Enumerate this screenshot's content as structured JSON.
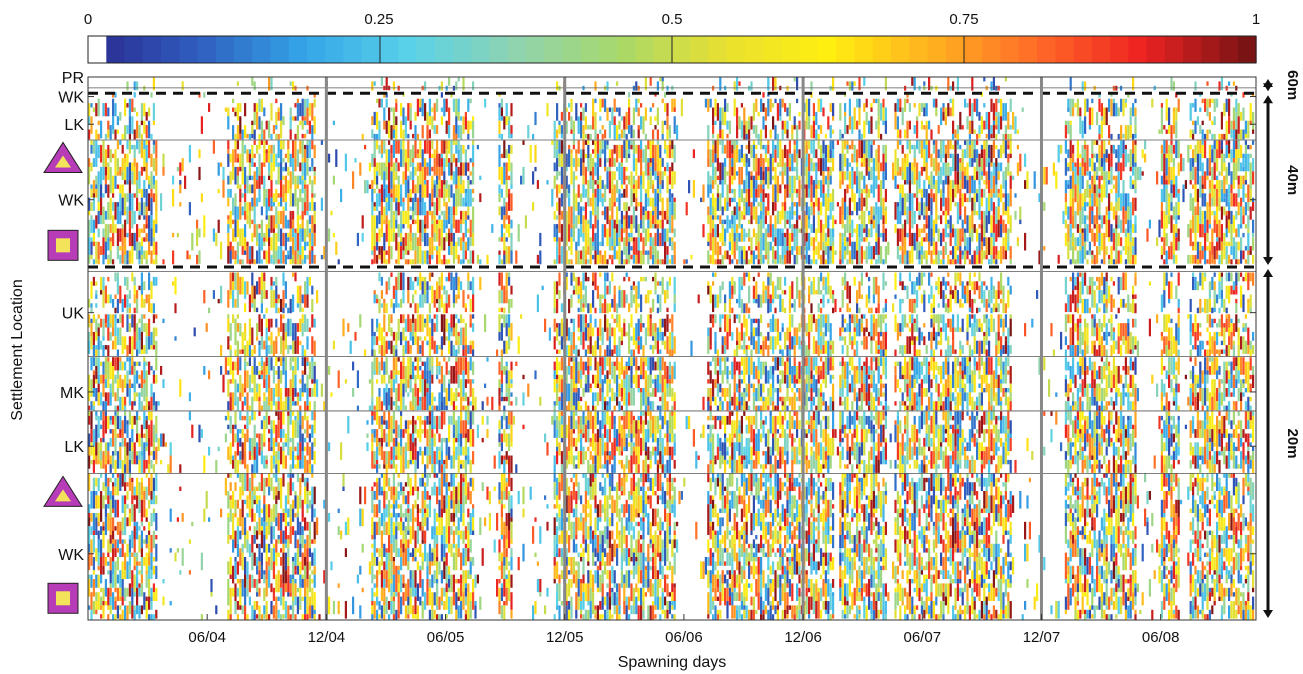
{
  "chart_data": {
    "type": "heatmap",
    "xlabel": "Spawning days",
    "ylabel": "Settlement Location",
    "colorbar": {
      "range": [
        0,
        1
      ],
      "ticks": [
        "0",
        "0.25",
        "0.5",
        "0.75",
        "1"
      ],
      "colormap": [
        "#2b2c92",
        "#3060c0",
        "#34a6e8",
        "#5ad2e8",
        "#8fd3b0",
        "#a8d86a",
        "#e8e030",
        "#ffef10",
        "#ffb020",
        "#ff6a28",
        "#ee2222",
        "#7a1414"
      ]
    },
    "x_tick_labels": [
      "06/04",
      "12/04",
      "06/05",
      "12/05",
      "06/06",
      "12/06",
      "06/07",
      "12/07",
      "06/08"
    ],
    "x_ticks": [
      0.5,
      1.0,
      1.5,
      2.0,
      2.5,
      3.0,
      3.5,
      4.0,
      4.5
    ],
    "xlim": [
      0.0,
      4.9
    ],
    "year_boundaries": [
      1.0,
      2.0,
      3.0,
      4.0
    ],
    "y_tick_labels": [
      "PR",
      "WK",
      "LK",
      "WK",
      "UK",
      "MK",
      "LK",
      "WK"
    ],
    "y_ticks": [
      100.0,
      96.4,
      91.3,
      77.4,
      56.6,
      42.0,
      32.0,
      12.2
    ],
    "ylim": [
      0,
      100
    ],
    "region_separators": [
      98.0,
      88.4,
      64.2,
      48.5,
      38.5,
      27.0
    ],
    "depth_separators": [
      97.0,
      65.0
    ],
    "depth_zones": [
      {
        "label": "60m",
        "range": [
          97.0,
          100.0
        ]
      },
      {
        "label": "40m",
        "range": [
          65.0,
          97.0
        ]
      },
      {
        "label": "20m",
        "range": [
          0.0,
          65.0
        ]
      }
    ],
    "markers": [
      {
        "shape": "triangle",
        "y": 85.0,
        "fill": "#b73cb7",
        "inner": "#f3e35a"
      },
      {
        "shape": "square",
        "y": 69.0,
        "fill": "#b73cb7",
        "inner": "#f3e35a"
      },
      {
        "shape": "triangle",
        "y": 23.5,
        "fill": "#b73cb7",
        "inner": "#f3e35a"
      },
      {
        "shape": "square",
        "y": 4.0,
        "fill": "#b73cb7",
        "inner": "#f3e35a"
      }
    ],
    "activity_windows": [
      [
        0.0,
        0.22
      ],
      [
        0.2,
        0.29
      ],
      [
        0.58,
        0.95
      ],
      [
        1.18,
        1.3
      ],
      [
        1.27,
        1.62
      ],
      [
        1.72,
        1.78
      ],
      [
        1.95,
        2.3
      ],
      [
        2.28,
        2.47
      ],
      [
        2.6,
        2.73
      ],
      [
        2.72,
        3.13
      ],
      [
        3.15,
        3.35
      ],
      [
        3.38,
        3.78
      ],
      [
        3.74,
        3.88
      ],
      [
        4.1,
        4.4
      ],
      [
        4.5,
        4.58
      ],
      [
        4.62,
        4.9
      ]
    ],
    "bands": [
      {
        "y": [
          97.5,
          100.0
        ],
        "density": 0.1
      },
      {
        "y": [
          96.2,
          97.2
        ],
        "density": 0.08
      },
      {
        "y": [
          88.5,
          96.0
        ],
        "density": 0.3
      },
      {
        "y": [
          65.5,
          88.3
        ],
        "density": 0.55
      },
      {
        "y": [
          56.5,
          64.0
        ],
        "density": 0.3
      },
      {
        "y": [
          48.6,
          56.3
        ],
        "density": 0.45
      },
      {
        "y": [
          38.6,
          48.4
        ],
        "density": 0.55
      },
      {
        "y": [
          27.1,
          38.4
        ],
        "density": 0.55
      },
      {
        "y": [
          0.0,
          27.0
        ],
        "density": 0.5
      }
    ]
  }
}
